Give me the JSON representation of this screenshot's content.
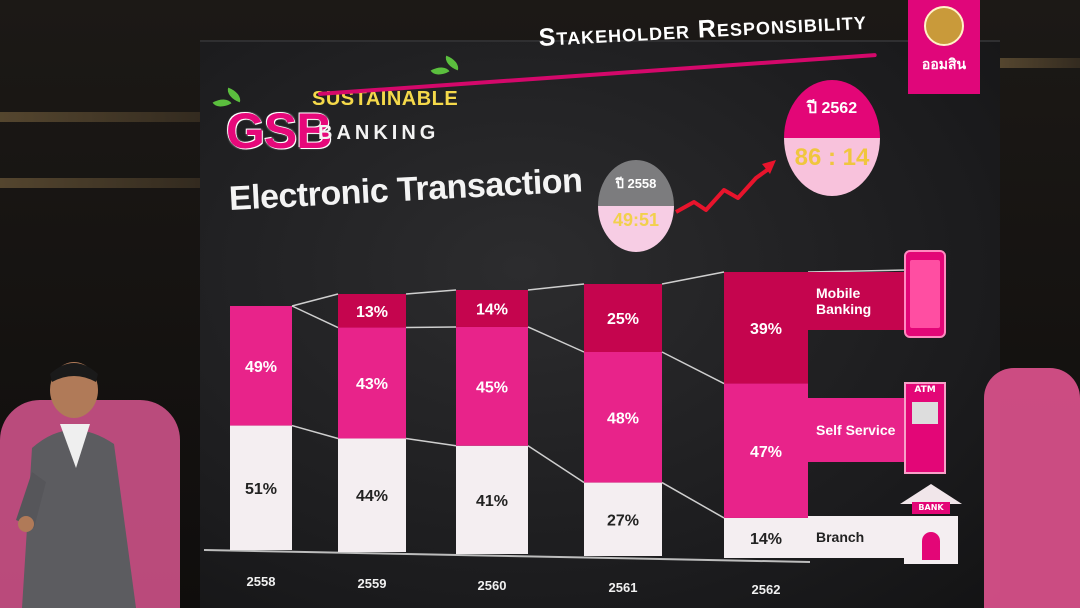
{
  "slide": {
    "brand_main": "GSB",
    "brand_line1": "SUSTAINABLE",
    "brand_line2": "BANKING",
    "headline": "Stakeholder Responsibility",
    "org_name": "ออมสิน",
    "title": "Electronic Transaction",
    "bubble_old": {
      "year": "ปี 2558",
      "ratio": "49:51"
    },
    "bubble_new": {
      "year": "ปี 2562",
      "ratio": "86 : 14"
    }
  },
  "legend": {
    "mobile": "Mobile Banking",
    "self_service": "Self Service",
    "branch": "Branch",
    "atm_tag": "ATM",
    "bank_sign": "BANK"
  },
  "colors": {
    "mobile": "#c5054e",
    "self_service": "#e8238a",
    "branch": "#f4eef1",
    "accent": "#e30677"
  },
  "chart_data": {
    "type": "bar",
    "stacked": true,
    "categories": [
      "2558",
      "2559",
      "2560",
      "2561",
      "2562"
    ],
    "series": [
      {
        "name": "Branch",
        "values": [
          51,
          44,
          41,
          27,
          14
        ]
      },
      {
        "name": "Self Service",
        "values": [
          49,
          43,
          45,
          48,
          47
        ]
      },
      {
        "name": "Mobile Banking",
        "values": [
          0,
          13,
          14,
          25,
          39
        ]
      }
    ],
    "labels": [
      [
        "51%",
        "44%",
        "41%",
        "27%",
        "14%"
      ],
      [
        "49%",
        "43%",
        "45%",
        "48%",
        "47%"
      ],
      [
        "",
        "13%",
        "14%",
        "25%",
        "39%"
      ]
    ],
    "ylim": [
      0,
      100
    ],
    "legend_position": "right"
  }
}
